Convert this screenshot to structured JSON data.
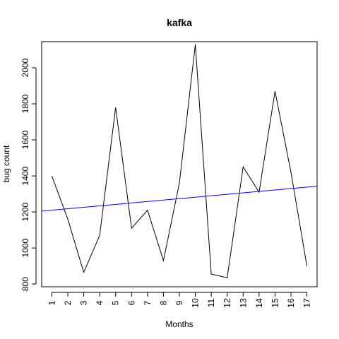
{
  "chart_data": {
    "type": "line",
    "title": "kafka",
    "xlabel": "Months",
    "ylabel": "bug count",
    "x": [
      1,
      2,
      3,
      4,
      5,
      6,
      7,
      8,
      9,
      10,
      11,
      12,
      13,
      14,
      15,
      16,
      17
    ],
    "x_tick_labels": [
      "1",
      "2",
      "3",
      "4",
      "5",
      "6",
      "7",
      "8",
      "9",
      "10",
      "11",
      "12",
      "13",
      "14",
      "15",
      "16",
      "17"
    ],
    "y_tick_labels": [
      "800",
      "1000",
      "1200",
      "1400",
      "1600",
      "1800",
      "2000"
    ],
    "y_ticks": [
      800,
      1000,
      1200,
      1400,
      1600,
      1800,
      2000
    ],
    "xlim": [
      0.36,
      17.64
    ],
    "ylim": [
      785,
      2145
    ],
    "series": [
      {
        "name": "bug count",
        "color": "#000000",
        "values": [
          1400,
          1160,
          865,
          1070,
          1780,
          1110,
          1210,
          930,
          1360,
          2130,
          855,
          835,
          1450,
          1310,
          1870,
          1420,
          900
        ]
      }
    ],
    "trend_line": {
      "name": "linear fit",
      "color": "#0000ff",
      "start": [
        0.36,
        1205
      ],
      "end": [
        17.64,
        1343
      ]
    },
    "grid": false,
    "legend": "none"
  }
}
